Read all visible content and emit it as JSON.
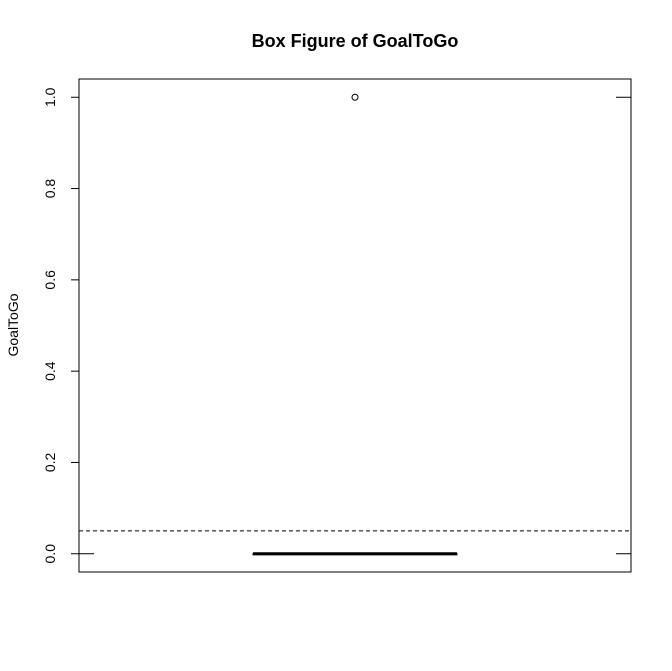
{
  "chart_data": {
    "type": "box",
    "title": "Box Figure of GoalToGo",
    "xlabel": "",
    "ylabel": "GoalToGo",
    "ylim": [
      -0.04,
      1.04
    ],
    "yticks": [
      0.0,
      0.2,
      0.4,
      0.6,
      0.8,
      1.0
    ],
    "ytick_labels": [
      "0.0",
      "0.2",
      "0.4",
      "0.6",
      "0.8",
      "1.0"
    ],
    "box": {
      "min": 0.0,
      "q1": 0.0,
      "median": 0.0,
      "q3": 0.0,
      "max": 0.0,
      "outliers": [
        1.0
      ]
    },
    "reference_line": {
      "value": 0.05,
      "style": "dashed"
    },
    "grid": false,
    "legend": "none"
  }
}
